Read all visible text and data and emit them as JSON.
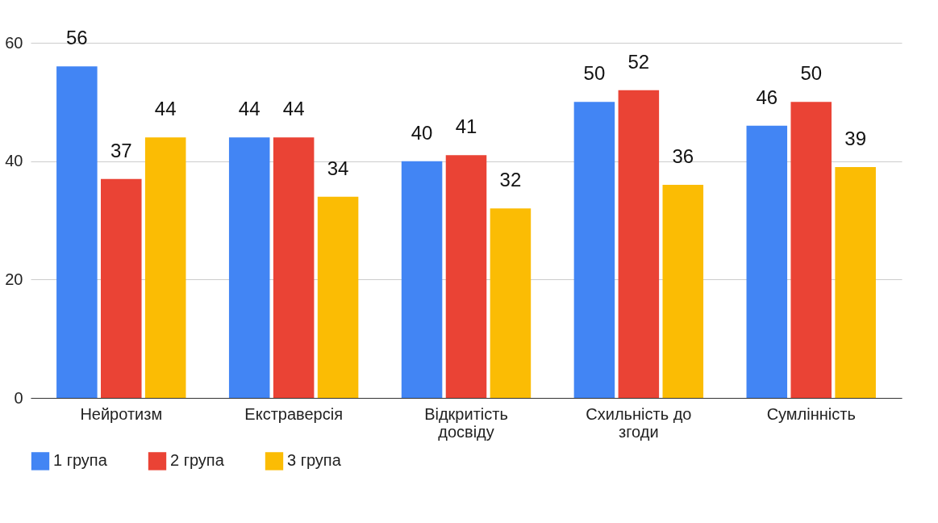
{
  "chart_data": {
    "type": "bar",
    "categories": [
      "Нейротизм",
      "Екстраверсія",
      "Відкритість досвіду",
      "Схильність до згоди",
      "Сумлінність"
    ],
    "series": [
      {
        "name": "1 група",
        "color": "#4285f4",
        "values": [
          56,
          44,
          40,
          50,
          46
        ]
      },
      {
        "name": "2 група",
        "color": "#ea4335",
        "values": [
          37,
          44,
          41,
          52,
          50
        ]
      },
      {
        "name": "3 група",
        "color": "#fbbc04",
        "values": [
          44,
          34,
          32,
          36,
          39
        ]
      }
    ],
    "ylim": [
      0,
      60
    ],
    "yticks": [
      0,
      20,
      40,
      60
    ],
    "grid": "y",
    "legend": "bottom",
    "data_labels": true
  }
}
